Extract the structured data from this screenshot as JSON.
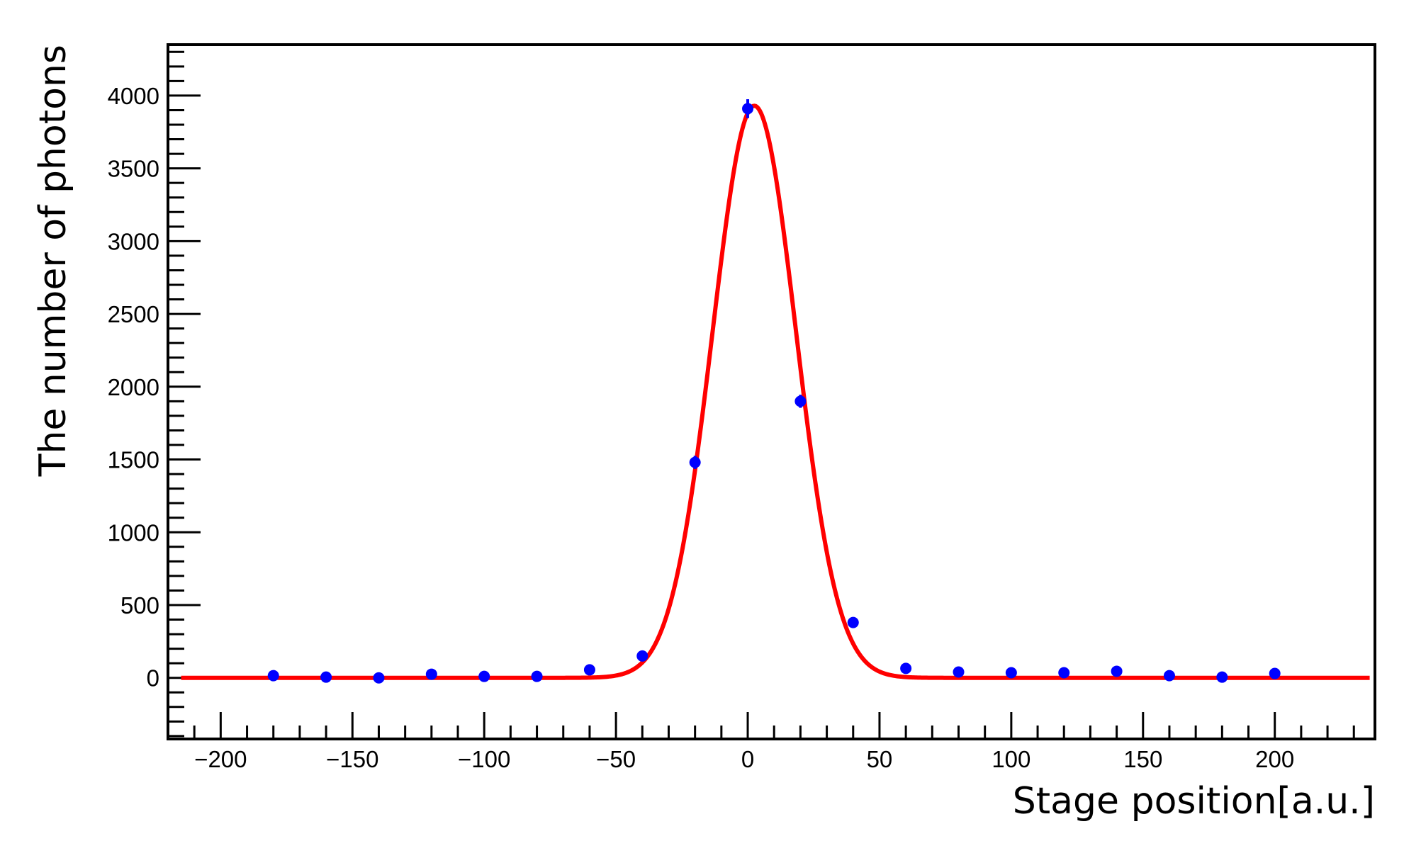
{
  "colors": {
    "frame": "#000000",
    "fit_curve": "#ff0000",
    "markers": "#0000ff",
    "background": "#ffffff"
  },
  "chart_data": {
    "type": "scatter",
    "title": "",
    "xlabel": "Stage position[a.u.]",
    "ylabel": "The number of photons",
    "xlim": [
      -220,
      238
    ],
    "ylim": [
      -420,
      4350
    ],
    "x_ticks": [
      -200,
      -150,
      -100,
      -50,
      0,
      50,
      100,
      150,
      200
    ],
    "x_tick_labels": [
      "−200",
      "−150",
      "−100",
      "−50",
      "0",
      "50",
      "100",
      "150",
      "200"
    ],
    "y_ticks": [
      0,
      500,
      1000,
      1500,
      2000,
      2500,
      3000,
      3500,
      4000
    ],
    "y_tick_labels": [
      "0",
      "500",
      "1000",
      "1500",
      "2000",
      "2500",
      "3000",
      "3500",
      "4000"
    ],
    "grid": false,
    "legend": "none",
    "series": [
      {
        "kind": "points",
        "x": [
          -180,
          -160,
          -140,
          -120,
          -100,
          -80,
          -60,
          -40,
          -20,
          0,
          20,
          40,
          60,
          80,
          100,
          120,
          140,
          160,
          180,
          200
        ],
        "y": [
          15,
          5,
          0,
          25,
          10,
          10,
          55,
          150,
          1480,
          3910,
          1900,
          380,
          65,
          40,
          35,
          35,
          45,
          15,
          5,
          30
        ],
        "yerr": [
          4,
          2,
          1,
          5,
          3,
          3,
          8,
          12,
          45,
          65,
          45,
          20,
          8,
          6,
          6,
          6,
          7,
          4,
          2,
          5
        ]
      },
      {
        "kind": "fit",
        "function": "gaussian",
        "amplitude": 3930,
        "mean": 2.5,
        "sigma": 15.8,
        "x_range": [
          -215,
          236
        ]
      }
    ]
  }
}
